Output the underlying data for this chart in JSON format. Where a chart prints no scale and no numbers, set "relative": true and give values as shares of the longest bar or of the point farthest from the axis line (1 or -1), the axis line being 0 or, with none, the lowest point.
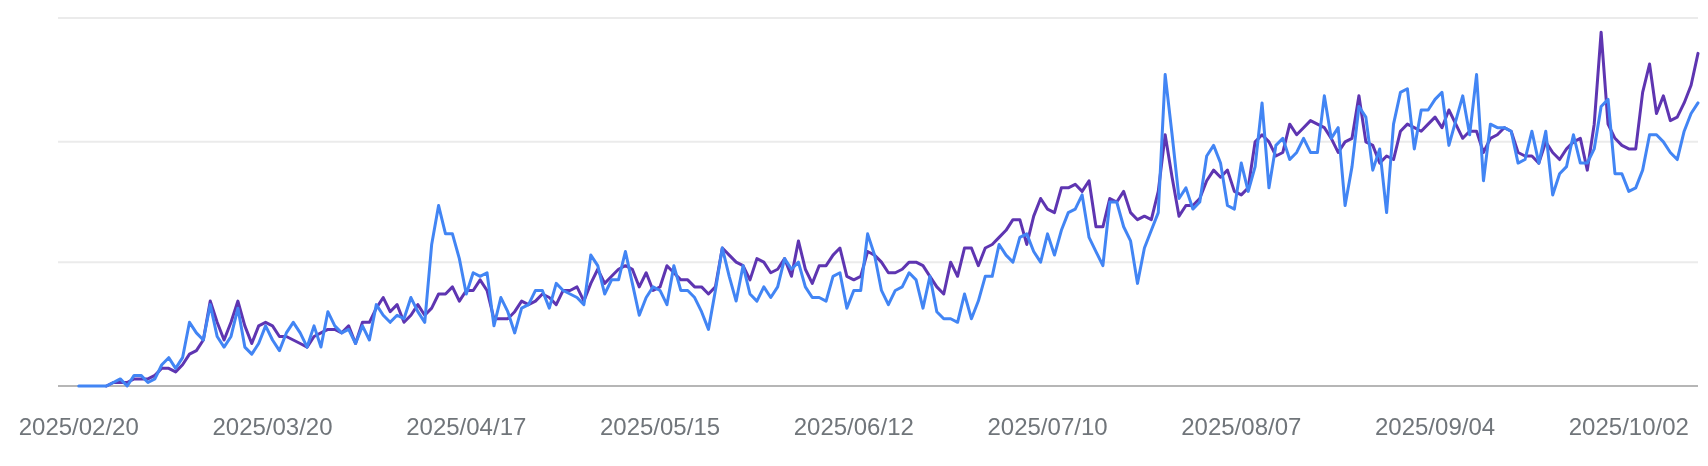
{
  "chart_data": {
    "type": "line",
    "relative": true,
    "ref_lines": [
      {
        "axis": "y",
        "value": 0.35,
        "color": "#ebebeb"
      },
      {
        "axis": "y",
        "value": 0.69,
        "color": "#ebebeb"
      },
      {
        "axis": "y",
        "value": 1.04,
        "color": "#ebebeb"
      }
    ],
    "xlim": [
      "2025-02-17",
      "2025-10-12"
    ],
    "xticks": [
      {
        "value": "2025-02-20",
        "label": "2025/02/20"
      },
      {
        "value": "2025-03-20",
        "label": "2025/03/20"
      },
      {
        "value": "2025-04-17",
        "label": "2025/04/17"
      },
      {
        "value": "2025-05-15",
        "label": "2025/05/15"
      },
      {
        "value": "2025-06-12",
        "label": "2025/06/12"
      },
      {
        "value": "2025-07-10",
        "label": "2025/07/10"
      },
      {
        "value": "2025-08-07",
        "label": "2025/08/07"
      },
      {
        "value": "2025-09-04",
        "label": "2025/09/04"
      },
      {
        "value": "2025-10-02",
        "label": "2025/10/02"
      }
    ],
    "x": [
      "2025-02-20",
      "2025-02-21",
      "2025-02-22",
      "2025-02-23",
      "2025-02-24",
      "2025-02-25",
      "2025-02-26",
      "2025-02-27",
      "2025-02-28",
      "2025-03-01",
      "2025-03-02",
      "2025-03-03",
      "2025-03-04",
      "2025-03-05",
      "2025-03-06",
      "2025-03-07",
      "2025-03-08",
      "2025-03-09",
      "2025-03-10",
      "2025-03-11",
      "2025-03-12",
      "2025-03-13",
      "2025-03-14",
      "2025-03-15",
      "2025-03-16",
      "2025-03-17",
      "2025-03-18",
      "2025-03-19",
      "2025-03-20",
      "2025-03-21",
      "2025-03-22",
      "2025-03-23",
      "2025-03-24",
      "2025-03-25",
      "2025-03-26",
      "2025-03-27",
      "2025-03-28",
      "2025-03-29",
      "2025-03-30",
      "2025-03-31",
      "2025-04-01",
      "2025-04-02",
      "2025-04-03",
      "2025-04-04",
      "2025-04-05",
      "2025-04-06",
      "2025-04-07",
      "2025-04-08",
      "2025-04-09",
      "2025-04-10",
      "2025-04-11",
      "2025-04-12",
      "2025-04-13",
      "2025-04-14",
      "2025-04-15",
      "2025-04-16",
      "2025-04-17",
      "2025-04-18",
      "2025-04-19",
      "2025-04-20",
      "2025-04-21",
      "2025-04-22",
      "2025-04-23",
      "2025-04-24",
      "2025-04-25",
      "2025-04-26",
      "2025-04-27",
      "2025-04-28",
      "2025-04-29",
      "2025-04-30",
      "2025-05-01",
      "2025-05-02",
      "2025-05-03",
      "2025-05-04",
      "2025-05-05",
      "2025-05-06",
      "2025-05-07",
      "2025-05-08",
      "2025-05-09",
      "2025-05-10",
      "2025-05-11",
      "2025-05-12",
      "2025-05-13",
      "2025-05-14",
      "2025-05-15",
      "2025-05-16",
      "2025-05-17",
      "2025-05-18",
      "2025-05-19",
      "2025-05-20",
      "2025-05-21",
      "2025-05-22",
      "2025-05-23",
      "2025-05-24",
      "2025-05-25",
      "2025-05-26",
      "2025-05-27",
      "2025-05-28",
      "2025-05-29",
      "2025-05-30",
      "2025-05-31",
      "2025-06-01",
      "2025-06-02",
      "2025-06-03",
      "2025-06-04",
      "2025-06-05",
      "2025-06-06",
      "2025-06-07",
      "2025-06-08",
      "2025-06-09",
      "2025-06-10",
      "2025-06-11",
      "2025-06-12",
      "2025-06-13",
      "2025-06-14",
      "2025-06-15",
      "2025-06-16",
      "2025-06-17",
      "2025-06-18",
      "2025-06-19",
      "2025-06-20",
      "2025-06-21",
      "2025-06-22",
      "2025-06-23",
      "2025-06-24",
      "2025-06-25",
      "2025-06-26",
      "2025-06-27",
      "2025-06-28",
      "2025-06-29",
      "2025-06-30",
      "2025-07-01",
      "2025-07-02",
      "2025-07-03",
      "2025-07-04",
      "2025-07-05",
      "2025-07-06",
      "2025-07-07",
      "2025-07-08",
      "2025-07-09",
      "2025-07-10",
      "2025-07-11",
      "2025-07-12",
      "2025-07-13",
      "2025-07-14",
      "2025-07-15",
      "2025-07-16",
      "2025-07-17",
      "2025-07-18",
      "2025-07-19",
      "2025-07-20",
      "2025-07-21",
      "2025-07-22",
      "2025-07-23",
      "2025-07-24",
      "2025-07-25",
      "2025-07-26",
      "2025-07-27",
      "2025-07-28",
      "2025-07-29",
      "2025-07-30",
      "2025-07-31",
      "2025-08-01",
      "2025-08-02",
      "2025-08-03",
      "2025-08-04",
      "2025-08-05",
      "2025-08-06",
      "2025-08-07",
      "2025-08-08",
      "2025-08-09",
      "2025-08-10",
      "2025-08-11",
      "2025-08-12",
      "2025-08-13",
      "2025-08-14",
      "2025-08-15",
      "2025-08-16",
      "2025-08-17",
      "2025-08-18",
      "2025-08-19",
      "2025-08-20",
      "2025-08-21",
      "2025-08-22",
      "2025-08-23",
      "2025-08-24",
      "2025-08-25",
      "2025-08-26",
      "2025-08-27",
      "2025-08-28",
      "2025-08-29",
      "2025-08-30",
      "2025-08-31",
      "2025-09-01",
      "2025-09-02",
      "2025-09-03",
      "2025-09-04",
      "2025-09-05",
      "2025-09-06",
      "2025-09-07",
      "2025-09-08",
      "2025-09-09",
      "2025-09-10",
      "2025-09-11",
      "2025-09-12",
      "2025-09-13",
      "2025-09-14",
      "2025-09-15",
      "2025-09-16",
      "2025-09-17",
      "2025-09-18",
      "2025-09-19",
      "2025-09-20",
      "2025-09-21",
      "2025-09-22",
      "2025-09-23",
      "2025-09-24",
      "2025-09-25",
      "2025-09-26",
      "2025-09-27",
      "2025-09-28",
      "2025-09-29",
      "2025-09-30",
      "2025-10-01",
      "2025-10-02",
      "2025-10-03",
      "2025-10-04",
      "2025-10-05",
      "2025-10-06",
      "2025-10-07",
      "2025-10-08",
      "2025-10-09",
      "2025-10-10",
      "2025-10-11",
      "2025-10-12"
    ],
    "series": [
      {
        "color": "#5e35b1",
        "values": [
          null,
          null,
          null,
          null,
          0,
          0.01,
          0.01,
          0.01,
          0.02,
          0.02,
          0.02,
          0.03,
          0.05,
          0.05,
          0.04,
          0.06,
          0.09,
          0.1,
          0.13,
          0.24,
          0.18,
          0.13,
          0.18,
          0.24,
          0.17,
          0.12,
          0.17,
          0.18,
          0.17,
          0.14,
          0.14,
          0.13,
          0.12,
          0.11,
          0.14,
          0.15,
          0.16,
          0.16,
          0.15,
          0.17,
          0.12,
          0.18,
          0.18,
          0.22,
          0.25,
          0.21,
          0.23,
          0.18,
          0.2,
          0.23,
          0.2,
          0.22,
          0.26,
          0.26,
          0.28,
          0.24,
          0.27,
          0.27,
          0.3,
          0.27,
          0.19,
          0.19,
          0.19,
          0.21,
          0.24,
          0.23,
          0.24,
          0.26,
          0.25,
          0.23,
          0.27,
          0.27,
          0.28,
          0.24,
          0.29,
          0.33,
          0.29,
          0.31,
          0.33,
          0.34,
          0.33,
          0.28,
          0.32,
          0.27,
          0.28,
          0.34,
          0.32,
          0.3,
          0.3,
          0.28,
          0.28,
          0.26,
          0.28,
          0.39,
          0.37,
          0.35,
          0.34,
          0.3,
          0.36,
          0.35,
          0.32,
          0.33,
          0.36,
          0.31,
          0.41,
          0.33,
          0.29,
          0.34,
          0.34,
          0.37,
          0.39,
          0.31,
          0.3,
          0.31,
          0.38,
          0.37,
          0.35,
          0.32,
          0.32,
          0.33,
          0.35,
          0.35,
          0.34,
          0.31,
          0.28,
          0.26,
          0.35,
          0.31,
          0.39,
          0.39,
          0.34,
          0.39,
          0.4,
          0.42,
          0.44,
          0.47,
          0.47,
          0.4,
          0.48,
          0.53,
          0.5,
          0.49,
          0.56,
          0.56,
          0.57,
          0.55,
          0.58,
          0.45,
          0.45,
          0.53,
          0.52,
          0.55,
          0.49,
          0.47,
          0.48,
          0.47,
          0.55,
          0.71,
          0.59,
          0.48,
          0.51,
          0.51,
          0.53,
          0.58,
          0.61,
          0.59,
          0.61,
          0.55,
          0.54,
          0.56,
          0.69,
          0.71,
          0.69,
          0.65,
          0.66,
          0.74,
          0.71,
          0.73,
          0.75,
          0.74,
          0.73,
          0.7,
          0.66,
          0.69,
          0.7,
          0.82,
          0.69,
          0.68,
          0.63,
          0.65,
          0.64,
          0.72,
          0.74,
          0.73,
          0.72,
          0.74,
          0.76,
          0.73,
          0.78,
          0.74,
          0.7,
          0.72,
          0.72,
          0.66,
          0.7,
          0.71,
          0.73,
          0.72,
          0.66,
          0.65,
          0.65,
          0.63,
          0.69,
          0.66,
          0.64,
          0.67,
          0.69,
          0.7,
          0.61,
          0.74,
          1,
          0.74,
          0.7,
          0.68,
          0.67,
          0.67,
          0.83,
          0.91,
          0.77,
          0.82,
          0.75,
          0.76,
          0.8,
          0.85,
          0.94
        ]
      },
      {
        "color": "#4285f4",
        "values": [
          0,
          0,
          0,
          0,
          0,
          0.01,
          0.02,
          0,
          0.03,
          0.03,
          0.01,
          0.02,
          0.06,
          0.08,
          0.05,
          0.08,
          0.18,
          0.15,
          0.13,
          0.23,
          0.14,
          0.11,
          0.14,
          0.22,
          0.11,
          0.09,
          0.12,
          0.17,
          0.13,
          0.1,
          0.15,
          0.18,
          0.15,
          0.11,
          0.17,
          0.11,
          0.21,
          0.17,
          0.15,
          0.16,
          0.12,
          0.17,
          0.13,
          0.23,
          0.2,
          0.18,
          0.2,
          0.19,
          0.25,
          0.21,
          0.18,
          0.4,
          0.51,
          0.43,
          0.43,
          0.36,
          0.26,
          0.32,
          0.31,
          0.32,
          0.17,
          0.25,
          0.21,
          0.15,
          0.22,
          0.23,
          0.27,
          0.27,
          0.22,
          0.29,
          0.27,
          0.26,
          0.25,
          0.23,
          0.37,
          0.34,
          0.26,
          0.3,
          0.3,
          0.38,
          0.29,
          0.2,
          0.25,
          0.28,
          0.27,
          0.23,
          0.34,
          0.27,
          0.27,
          0.25,
          0.21,
          0.16,
          0.27,
          0.39,
          0.31,
          0.24,
          0.34,
          0.26,
          0.24,
          0.28,
          0.25,
          0.28,
          0.36,
          0.33,
          0.35,
          0.28,
          0.25,
          0.25,
          0.24,
          0.31,
          0.32,
          0.22,
          0.27,
          0.27,
          0.43,
          0.37,
          0.27,
          0.23,
          0.27,
          0.28,
          0.32,
          0.3,
          0.22,
          0.31,
          0.21,
          0.19,
          0.19,
          0.18,
          0.26,
          0.19,
          0.24,
          0.31,
          0.31,
          0.4,
          0.37,
          0.35,
          0.42,
          0.43,
          0.38,
          0.35,
          0.43,
          0.37,
          0.44,
          0.49,
          0.5,
          0.54,
          0.42,
          0.38,
          0.34,
          0.52,
          0.52,
          0.45,
          0.41,
          0.29,
          0.39,
          0.44,
          0.49,
          0.88,
          0.71,
          0.53,
          0.56,
          0.5,
          0.52,
          0.65,
          0.68,
          0.63,
          0.51,
          0.5,
          0.63,
          0.55,
          0.62,
          0.8,
          0.56,
          0.68,
          0.7,
          0.64,
          0.66,
          0.7,
          0.66,
          0.66,
          0.82,
          0.7,
          0.73,
          0.51,
          0.62,
          0.79,
          0.76,
          0.61,
          0.67,
          0.49,
          0.74,
          0.83,
          0.84,
          0.67,
          0.78,
          0.78,
          0.81,
          0.83,
          0.68,
          0.75,
          0.82,
          0.71,
          0.88,
          0.58,
          0.74,
          0.73,
          0.73,
          0.72,
          0.63,
          0.64,
          0.72,
          0.63,
          0.72,
          0.54,
          0.6,
          0.62,
          0.71,
          0.63,
          0.63,
          0.67,
          0.79,
          0.81,
          0.6,
          0.6,
          0.55,
          0.56,
          0.61,
          0.71,
          0.71,
          0.69,
          0.66,
          0.64,
          0.72,
          0.77,
          0.8
        ]
      }
    ]
  }
}
